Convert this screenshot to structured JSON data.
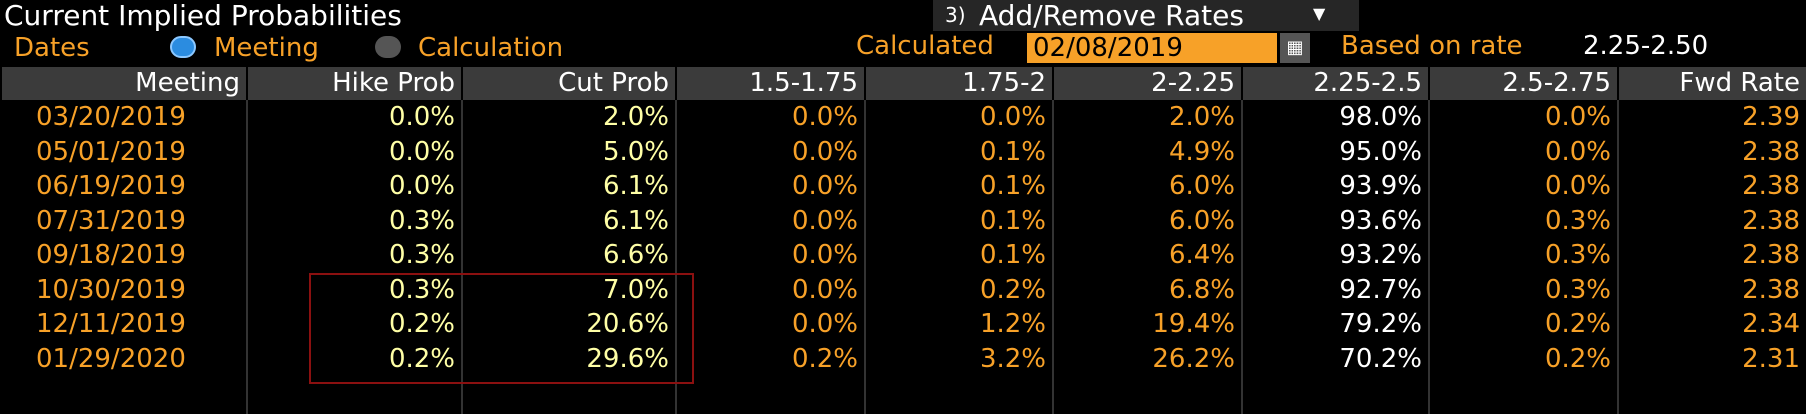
{
  "header": {
    "title": "Current Implied Probabilities",
    "button_number": "3)",
    "button_label": "Add/Remove Rates"
  },
  "options": {
    "dates_label": "Dates",
    "radio_meeting": "Meeting",
    "radio_calculation": "Calculation",
    "calculated_label": "Calculated",
    "calculated_date": "02/08/2019",
    "based_on_label": "Based on rate",
    "based_on_value": "2.25-2.50"
  },
  "table": {
    "columns": [
      "Meeting",
      "Hike Prob",
      "Cut Prob",
      "1.5-1.75",
      "1.75-2",
      "2-2.25",
      "2.25-2.5",
      "2.5-2.75",
      "Fwd Rate"
    ],
    "rows": [
      [
        "03/20/2019",
        "0.0%",
        "2.0%",
        "0.0%",
        "0.0%",
        "2.0%",
        "98.0%",
        "0.0%",
        "2.39"
      ],
      [
        "05/01/2019",
        "0.0%",
        "5.0%",
        "0.0%",
        "0.1%",
        "4.9%",
        "95.0%",
        "0.0%",
        "2.38"
      ],
      [
        "06/19/2019",
        "0.0%",
        "6.1%",
        "0.0%",
        "0.1%",
        "6.0%",
        "93.9%",
        "0.0%",
        "2.38"
      ],
      [
        "07/31/2019",
        "0.3%",
        "6.1%",
        "0.0%",
        "0.1%",
        "6.0%",
        "93.6%",
        "0.3%",
        "2.38"
      ],
      [
        "09/18/2019",
        "0.3%",
        "6.6%",
        "0.0%",
        "0.1%",
        "6.4%",
        "93.2%",
        "0.3%",
        "2.38"
      ],
      [
        "10/30/2019",
        "0.3%",
        "7.0%",
        "0.0%",
        "0.2%",
        "6.8%",
        "92.7%",
        "0.3%",
        "2.38"
      ],
      [
        "12/11/2019",
        "0.2%",
        "20.6%",
        "0.0%",
        "1.2%",
        "19.4%",
        "79.2%",
        "0.2%",
        "2.34"
      ],
      [
        "01/29/2020",
        "0.2%",
        "29.6%",
        "0.2%",
        "3.2%",
        "26.2%",
        "70.2%",
        "0.2%",
        "2.31"
      ]
    ]
  }
}
